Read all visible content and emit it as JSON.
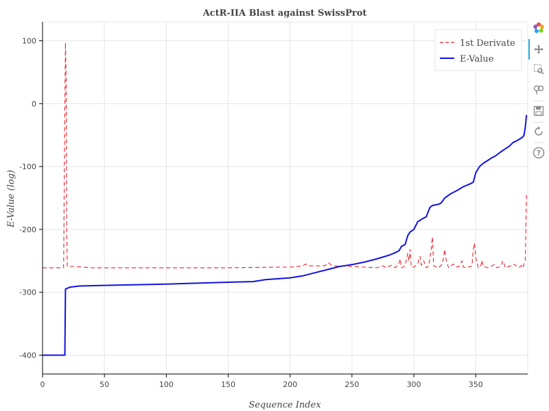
{
  "chart_data": {
    "type": "line",
    "title": "ActR-IIA Blast against SwissProt",
    "xlabel": "Sequence Index",
    "ylabel": "E-Value (log)",
    "xlim": [
      0,
      392
    ],
    "ylim": [
      -430,
      130
    ],
    "x_ticks": [
      0,
      50,
      100,
      150,
      200,
      250,
      300,
      350
    ],
    "y_ticks": [
      -400,
      -300,
      -200,
      -100,
      0,
      100
    ],
    "grid": true,
    "legend_position": "top-right",
    "series": [
      {
        "name": "1st Derivate",
        "color": "#e8202a",
        "dash": "dashed",
        "points": [
          [
            0,
            -261
          ],
          [
            17,
            -261
          ],
          [
            18,
            -5
          ],
          [
            18.5,
            97
          ],
          [
            19,
            40
          ],
          [
            19.5,
            -200
          ],
          [
            20,
            -259
          ],
          [
            25,
            -259
          ],
          [
            40,
            -261
          ],
          [
            100,
            -261
          ],
          [
            150,
            -261
          ],
          [
            190,
            -260
          ],
          [
            200,
            -260
          ],
          [
            210,
            -258
          ],
          [
            213,
            -255
          ],
          [
            215,
            -258
          ],
          [
            228,
            -258
          ],
          [
            231,
            -253
          ],
          [
            234,
            -258
          ],
          [
            250,
            -259
          ],
          [
            270,
            -261
          ],
          [
            275,
            -258
          ],
          [
            278,
            -261
          ],
          [
            282,
            -257
          ],
          [
            285,
            -261
          ],
          [
            288,
            -254
          ],
          [
            289,
            -247
          ],
          [
            290,
            -261
          ],
          [
            293,
            -258
          ],
          [
            295,
            -238
          ],
          [
            296,
            -250
          ],
          [
            297,
            -232
          ],
          [
            298,
            -260
          ],
          [
            300,
            -260
          ],
          [
            303,
            -255
          ],
          [
            305,
            -243
          ],
          [
            306,
            -257
          ],
          [
            308,
            -250
          ],
          [
            310,
            -261
          ],
          [
            312,
            -258
          ],
          [
            314,
            -232
          ],
          [
            315,
            -212
          ],
          [
            316,
            -258
          ],
          [
            320,
            -261
          ],
          [
            323,
            -255
          ],
          [
            325,
            -232
          ],
          [
            326,
            -248
          ],
          [
            328,
            -261
          ],
          [
            332,
            -255
          ],
          [
            335,
            -260
          ],
          [
            337,
            -258
          ],
          [
            339,
            -250
          ],
          [
            340,
            -260
          ],
          [
            343,
            -261
          ],
          [
            347,
            -258
          ],
          [
            348,
            -232
          ],
          [
            349,
            -222
          ],
          [
            350,
            -245
          ],
          [
            352,
            -261
          ],
          [
            354,
            -258
          ],
          [
            355,
            -249
          ],
          [
            356,
            -259
          ],
          [
            360,
            -261
          ],
          [
            365,
            -256
          ],
          [
            367,
            -261
          ],
          [
            370,
            -259
          ],
          [
            372,
            -250
          ],
          [
            374,
            -261
          ],
          [
            378,
            -258
          ],
          [
            380,
            -255
          ],
          [
            383,
            -258
          ],
          [
            385,
            -261
          ],
          [
            387,
            -257
          ],
          [
            388,
            -261
          ],
          [
            390,
            -250
          ],
          [
            391,
            -145
          ]
        ]
      },
      {
        "name": "E-Value",
        "color": "#1010e0",
        "dash": "solid",
        "points": [
          [
            0,
            -400
          ],
          [
            18,
            -400
          ],
          [
            18.5,
            -295
          ],
          [
            22,
            -292
          ],
          [
            30,
            -290
          ],
          [
            50,
            -289
          ],
          [
            100,
            -287
          ],
          [
            150,
            -284
          ],
          [
            170,
            -283
          ],
          [
            180,
            -280
          ],
          [
            200,
            -277
          ],
          [
            210,
            -274
          ],
          [
            220,
            -269
          ],
          [
            230,
            -264
          ],
          [
            240,
            -259
          ],
          [
            250,
            -256
          ],
          [
            260,
            -252
          ],
          [
            270,
            -247
          ],
          [
            280,
            -241
          ],
          [
            285,
            -237
          ],
          [
            288,
            -234
          ],
          [
            290,
            -227
          ],
          [
            293,
            -224
          ],
          [
            295,
            -210
          ],
          [
            297,
            -204
          ],
          [
            300,
            -200
          ],
          [
            303,
            -188
          ],
          [
            307,
            -183
          ],
          [
            310,
            -180
          ],
          [
            313,
            -165
          ],
          [
            315,
            -162
          ],
          [
            320,
            -160
          ],
          [
            322,
            -158
          ],
          [
            325,
            -150
          ],
          [
            330,
            -143
          ],
          [
            335,
            -138
          ],
          [
            340,
            -132
          ],
          [
            345,
            -128
          ],
          [
            348,
            -125
          ],
          [
            350,
            -110
          ],
          [
            353,
            -100
          ],
          [
            356,
            -95
          ],
          [
            360,
            -90
          ],
          [
            363,
            -86
          ],
          [
            366,
            -83
          ],
          [
            370,
            -77
          ],
          [
            373,
            -73
          ],
          [
            377,
            -68
          ],
          [
            380,
            -62
          ],
          [
            384,
            -58
          ],
          [
            388,
            -53
          ],
          [
            389,
            -50
          ],
          [
            390,
            -38
          ],
          [
            391,
            -18
          ]
        ]
      }
    ]
  },
  "toolbar": {
    "icons": [
      "bokeh-logo-icon",
      "pan-icon",
      "box-zoom-icon",
      "wheel-zoom-icon",
      "zoom-out-icon",
      "save-icon",
      "reset-icon",
      "help-icon"
    ]
  }
}
